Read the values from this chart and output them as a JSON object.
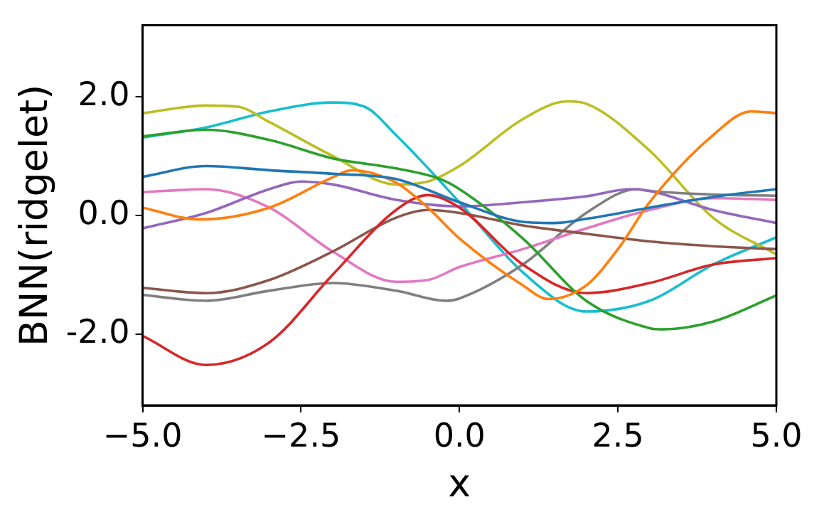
{
  "chart_data": {
    "type": "line",
    "xlabel": "x",
    "ylabel": "BNN(ridgelet)",
    "xlim": [
      -5,
      5
    ],
    "ylim": [
      -3.2,
      3.2
    ],
    "xticks": [
      {
        "value": -5,
        "label": "−5.0"
      },
      {
        "value": -2.5,
        "label": "−2.5"
      },
      {
        "value": 0,
        "label": "0.0"
      },
      {
        "value": 2.5,
        "label": "2.5"
      },
      {
        "value": 5,
        "label": "5.0"
      }
    ],
    "yticks": [
      {
        "value": -2,
        "label": "-2.0"
      },
      {
        "value": 0,
        "label": "0.0"
      },
      {
        "value": 2,
        "label": "2.0"
      }
    ],
    "grid": false,
    "legend": false,
    "marker": "none",
    "line_style": "solid",
    "series": [
      {
        "color": "#1f77b4",
        "x": [
          -5,
          -4,
          -3,
          -2,
          -1,
          0,
          1,
          1.5,
          2,
          3,
          4,
          5
        ],
        "values": [
          0.65,
          0.83,
          0.76,
          0.7,
          0.61,
          0.22,
          -0.11,
          -0.13,
          -0.06,
          0.13,
          0.31,
          0.44
        ]
      },
      {
        "color": "#ff7f0e",
        "x": [
          -5,
          -4.1,
          -3,
          -2,
          -1.7,
          -1,
          -0.5,
          0,
          1,
          1.4,
          2,
          2.5,
          3,
          4,
          4.6,
          5
        ],
        "values": [
          0.13,
          -0.07,
          0.13,
          0.64,
          0.76,
          0.55,
          0.13,
          -0.39,
          -1.18,
          -1.41,
          -1.18,
          -0.57,
          0.22,
          1.35,
          1.75,
          1.72
        ]
      },
      {
        "color": "#2ca02c",
        "x": [
          -5,
          -4,
          -3,
          -2,
          -1,
          -0.3,
          0,
          1,
          2,
          3,
          3.2,
          4,
          5
        ],
        "values": [
          1.33,
          1.44,
          1.27,
          0.96,
          0.79,
          0.61,
          0.44,
          -0.39,
          -1.44,
          -1.9,
          -1.92,
          -1.79,
          -1.35
        ]
      },
      {
        "color": "#d62728",
        "x": [
          -5,
          -4,
          -3,
          -2,
          -1,
          -0.5,
          0,
          1,
          2,
          3,
          4,
          5
        ],
        "values": [
          -2.03,
          -2.52,
          -2.14,
          -1.0,
          0.09,
          0.34,
          0.13,
          -0.83,
          -1.31,
          -1.14,
          -0.83,
          -0.72
        ]
      },
      {
        "color": "#9467bd",
        "x": [
          -5,
          -4,
          -3,
          -2.5,
          -2,
          -1,
          0,
          1,
          2,
          2.7,
          3,
          4,
          5
        ],
        "values": [
          -0.22,
          0.04,
          0.44,
          0.57,
          0.52,
          0.26,
          0.15,
          0.22,
          0.32,
          0.44,
          0.41,
          0.09,
          -0.13
        ]
      },
      {
        "color": "#8c564b",
        "x": [
          -5,
          -4,
          -3,
          -2,
          -1,
          -0.5,
          0,
          1,
          2,
          3,
          4,
          5
        ],
        "values": [
          -1.22,
          -1.31,
          -1.09,
          -0.61,
          -0.04,
          0.09,
          0.04,
          -0.17,
          -0.31,
          -0.44,
          -0.52,
          -0.57
        ]
      },
      {
        "color": "#e377c2",
        "x": [
          -5,
          -4,
          -3,
          -2,
          -1,
          -0.5,
          0,
          1,
          2,
          3,
          4,
          5
        ],
        "values": [
          0.39,
          0.44,
          0.13,
          -0.61,
          -1.12,
          -1.09,
          -0.87,
          -0.57,
          -0.22,
          0.09,
          0.29,
          0.26
        ]
      },
      {
        "color": "#7f7f7f",
        "x": [
          -5,
          -4,
          -3,
          -2,
          -1,
          -0.2,
          0,
          1,
          2,
          2.8,
          3,
          4,
          5
        ],
        "values": [
          -1.34,
          -1.44,
          -1.27,
          -1.14,
          -1.27,
          -1.44,
          -1.4,
          -0.83,
          0.04,
          0.44,
          0.41,
          0.35,
          0.33
        ]
      },
      {
        "color": "#bcbd22",
        "x": [
          -5,
          -4,
          -3.5,
          -3,
          -2,
          -1,
          -0.5,
          0,
          1,
          1.7,
          2,
          3,
          4,
          5
        ],
        "values": [
          1.72,
          1.85,
          1.83,
          1.57,
          1.0,
          0.52,
          0.57,
          0.83,
          1.62,
          1.92,
          1.88,
          1.09,
          -0.04,
          -0.66
        ]
      },
      {
        "color": "#17becf",
        "x": [
          -5,
          -4,
          -3,
          -2,
          -1.5,
          -1,
          0,
          1,
          2,
          3,
          4,
          5
        ],
        "values": [
          1.31,
          1.48,
          1.75,
          1.9,
          1.83,
          1.35,
          0.22,
          -0.96,
          -1.62,
          -1.44,
          -0.83,
          -0.37
        ]
      }
    ]
  }
}
